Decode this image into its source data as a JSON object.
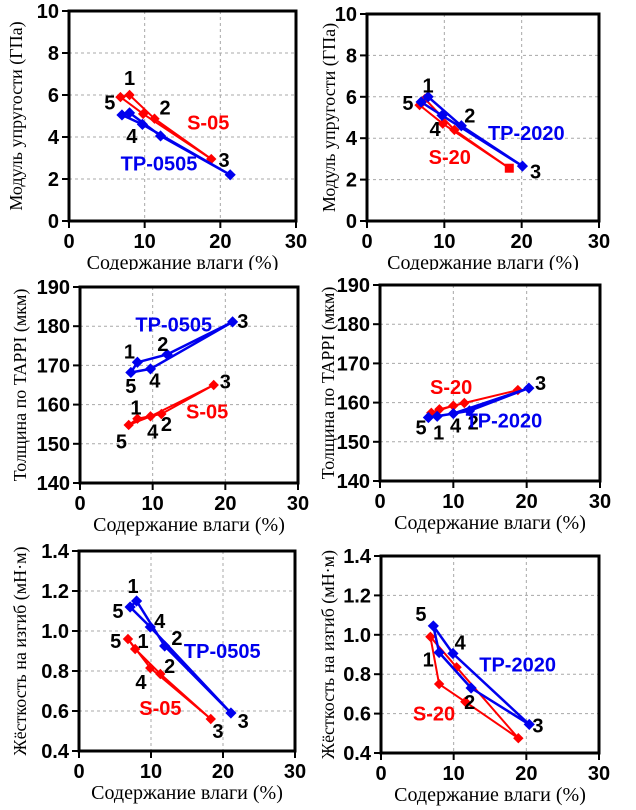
{
  "page": {
    "background": "#ffffff"
  },
  "colors": {
    "red": "#ff0000",
    "blue": "#0000ee",
    "grid": "#a8a8a8",
    "frame": "#000000",
    "text": "#000000"
  },
  "chart_data": [
    {
      "id": "modulus-05",
      "type": "line",
      "xlabel": "Содержание влаги (%)",
      "ylabel": "Модуль упругости (ГПа)",
      "xlim": [
        0,
        30
      ],
      "ylim": [
        0,
        10
      ],
      "xticks": [
        0,
        10,
        20,
        30
      ],
      "xtick_labels": [
        "0",
        "10",
        "20",
        "30"
      ],
      "yticks": [
        0,
        2,
        4,
        6,
        8,
        10
      ],
      "ytick_labels": [
        "0",
        "2",
        "4",
        "6",
        "8",
        "10"
      ],
      "grid": true,
      "series": [
        {
          "name": "S-05",
          "color": "#ff0000",
          "marker": "diamond",
          "closed": true,
          "points": [
            {
              "label": "1",
              "x": 8.0,
              "y": 6.0
            },
            {
              "label": "2",
              "x": 11.3,
              "y": 4.87
            },
            {
              "label": "3",
              "x": 18.8,
              "y": 2.95
            },
            {
              "label": "4",
              "x": 9.8,
              "y": 5.1
            },
            {
              "label": "5",
              "x": 6.8,
              "y": 5.9
            }
          ]
        },
        {
          "name": "TP-0505",
          "color": "#0000ee",
          "marker": "diamond",
          "closed": true,
          "points": [
            {
              "label": "1",
              "x": 8.0,
              "y": 5.15
            },
            {
              "label": "2",
              "x": 12.1,
              "y": 4.05
            },
            {
              "label": "3",
              "x": 21.3,
              "y": 2.2
            },
            {
              "label": "4",
              "x": 9.7,
              "y": 4.6
            },
            {
              "label": "5",
              "x": 7.0,
              "y": 5.05
            }
          ]
        }
      ],
      "annotations": [
        {
          "text": "1",
          "x": 8.0,
          "y": 6.8,
          "color": "#000000"
        },
        {
          "text": "5",
          "x": 5.4,
          "y": 5.65,
          "color": "#000000"
        },
        {
          "text": "2",
          "x": 12.7,
          "y": 5.4,
          "color": "#000000"
        },
        {
          "text": "4",
          "x": 8.3,
          "y": 4.05,
          "color": "#000000"
        },
        {
          "text": "3",
          "x": 20.5,
          "y": 2.9,
          "color": "#000000"
        },
        {
          "text": "S-05",
          "x": 18.4,
          "y": 4.7,
          "color": "#ff0000"
        },
        {
          "text": "TP-0505",
          "x": 11.9,
          "y": 2.75,
          "color": "#0000ee"
        }
      ]
    },
    {
      "id": "modulus-20",
      "type": "line",
      "xlabel": "Содержание влаги (%)",
      "ylabel": "Модуль упругости (ГПа)",
      "xlim": [
        0,
        30
      ],
      "ylim": [
        0,
        10
      ],
      "xticks": [
        0,
        10,
        20,
        30
      ],
      "xtick_labels": [
        "0",
        "10",
        "20",
        "30"
      ],
      "yticks": [
        0,
        2,
        4,
        6,
        8,
        10
      ],
      "ytick_labels": [
        "0",
        "2",
        "4",
        "6",
        "8",
        "10"
      ],
      "grid": true,
      "series": [
        {
          "name": "S-20",
          "color": "#ff0000",
          "marker": "diamond",
          "closed": true,
          "points": [
            {
              "label": "1",
              "x": 7.5,
              "y": 5.9
            },
            {
              "label": "2",
              "x": 11.3,
              "y": 4.4
            },
            {
              "label": "3",
              "x": 18.4,
              "y": 2.55,
              "marker": "square"
            },
            {
              "label": "4",
              "x": 9.8,
              "y": 4.7
            },
            {
              "label": "5",
              "x": 6.8,
              "y": 5.6
            }
          ]
        },
        {
          "name": "TP-2020",
          "color": "#0000ee",
          "marker": "diamond",
          "closed": true,
          "points": [
            {
              "label": "1",
              "x": 7.9,
              "y": 6.0
            },
            {
              "label": "2",
              "x": 12.2,
              "y": 4.6
            },
            {
              "label": "3",
              "x": 20.1,
              "y": 2.65
            },
            {
              "label": "4",
              "x": 9.7,
              "y": 5.1
            },
            {
              "label": "5",
              "x": 7.0,
              "y": 5.75
            }
          ]
        }
      ],
      "annotations": [
        {
          "text": "1",
          "x": 7.9,
          "y": 6.55,
          "color": "#000000"
        },
        {
          "text": "5",
          "x": 5.3,
          "y": 5.7,
          "color": "#000000"
        },
        {
          "text": "2",
          "x": 13.3,
          "y": 5.1,
          "color": "#000000"
        },
        {
          "text": "4",
          "x": 8.8,
          "y": 4.45,
          "color": "#000000"
        },
        {
          "text": "3",
          "x": 21.8,
          "y": 2.4,
          "color": "#000000"
        },
        {
          "text": "S-20",
          "x": 10.7,
          "y": 3.1,
          "color": "#ff0000"
        },
        {
          "text": "TP-2020",
          "x": 20.6,
          "y": 4.25,
          "color": "#0000ee"
        }
      ]
    },
    {
      "id": "thickness-05",
      "type": "line",
      "xlabel": "Содержание влаги (%)",
      "ylabel": "Толщина по TAPPI (мкм)",
      "xlim": [
        0,
        30
      ],
      "ylim": [
        140,
        190
      ],
      "xticks": [
        0,
        10,
        20,
        30
      ],
      "xtick_labels": [
        "0",
        "10",
        "20",
        "30"
      ],
      "yticks": [
        140,
        150,
        160,
        170,
        180,
        190
      ],
      "ytick_labels": [
        "140",
        "150",
        "160",
        "170",
        "180",
        "190"
      ],
      "grid": true,
      "series": [
        {
          "name": "S-05",
          "color": "#ff0000",
          "marker": "diamond",
          "closed": true,
          "points": [
            {
              "label": "1",
              "x": 7.9,
              "y": 156.4
            },
            {
              "label": "2",
              "x": 11.2,
              "y": 157.6
            },
            {
              "label": "3",
              "x": 18.4,
              "y": 165.0
            },
            {
              "label": "4",
              "x": 9.7,
              "y": 157.0
            },
            {
              "label": "5",
              "x": 6.7,
              "y": 154.8
            }
          ]
        },
        {
          "name": "TP-0505",
          "color": "#0000ee",
          "marker": "diamond",
          "closed": true,
          "points": [
            {
              "label": "1",
              "x": 7.9,
              "y": 170.8
            },
            {
              "label": "2",
              "x": 12.0,
              "y": 172.8
            },
            {
              "label": "3",
              "x": 21.0,
              "y": 181.1
            },
            {
              "label": "4",
              "x": 9.7,
              "y": 169.1
            },
            {
              "label": "5",
              "x": 7.0,
              "y": 168.2
            }
          ]
        }
      ],
      "annotations": [
        {
          "text": "1",
          "x": 6.8,
          "y": 173.5,
          "color": "#000000"
        },
        {
          "text": "2",
          "x": 11.4,
          "y": 175.4,
          "color": "#000000"
        },
        {
          "text": "3",
          "x": 22.4,
          "y": 181.3,
          "color": "#000000"
        },
        {
          "text": "5",
          "x": 7.0,
          "y": 164.7,
          "color": "#000000"
        },
        {
          "text": "4",
          "x": 10.3,
          "y": 166.1,
          "color": "#000000"
        },
        {
          "text": "TP-0505",
          "x": 12.9,
          "y": 180.4,
          "color": "#0000ee"
        },
        {
          "text": "1",
          "x": 7.7,
          "y": 159.2,
          "color": "#000000"
        },
        {
          "text": "2",
          "x": 11.9,
          "y": 155.0,
          "color": "#000000"
        },
        {
          "text": "3",
          "x": 20.0,
          "y": 165.9,
          "color": "#000000"
        },
        {
          "text": "4",
          "x": 10.0,
          "y": 153.2,
          "color": "#000000"
        },
        {
          "text": "5",
          "x": 5.7,
          "y": 150.6,
          "color": "#000000"
        },
        {
          "text": "S-05",
          "x": 17.5,
          "y": 158.2,
          "color": "#ff0000"
        }
      ]
    },
    {
      "id": "thickness-20",
      "type": "line",
      "xlabel": "Содержание влаги (%)",
      "ylabel": "Толщина по TAPPI (мкм)",
      "xlim": [
        0,
        30
      ],
      "ylim": [
        140,
        190
      ],
      "xticks": [
        0,
        10,
        20,
        30
      ],
      "xtick_labels": [
        "0",
        "10",
        "20",
        "30"
      ],
      "yticks": [
        140,
        150,
        160,
        170,
        180,
        190
      ],
      "ytick_labels": [
        "140",
        "150",
        "160",
        "170",
        "180",
        "190"
      ],
      "grid": true,
      "series": [
        {
          "name": "S-20",
          "color": "#ff0000",
          "marker": "diamond",
          "closed": true,
          "points": [
            {
              "label": "1",
              "x": 8.1,
              "y": 158.3
            },
            {
              "label": "2",
              "x": 11.5,
              "y": 159.9
            },
            {
              "label": "3",
              "x": 18.8,
              "y": 163.2
            },
            {
              "label": "4",
              "x": 10.0,
              "y": 159.2
            },
            {
              "label": "5",
              "x": 7.0,
              "y": 157.4
            }
          ]
        },
        {
          "name": "TP-2020",
          "color": "#0000ee",
          "marker": "diamond",
          "closed": true,
          "points": [
            {
              "label": "1",
              "x": 7.8,
              "y": 156.5
            },
            {
              "label": "2",
              "x": 12.2,
              "y": 157.9
            },
            {
              "label": "3",
              "x": 20.3,
              "y": 163.7
            },
            {
              "label": "4",
              "x": 10.0,
              "y": 157.2
            },
            {
              "label": "5",
              "x": 6.6,
              "y": 156.2
            }
          ]
        }
      ],
      "annotations": [
        {
          "text": "5",
          "x": 5.6,
          "y": 153.6,
          "color": "#000000"
        },
        {
          "text": "1",
          "x": 8.0,
          "y": 152.4,
          "color": "#000000"
        },
        {
          "text": "4",
          "x": 10.3,
          "y": 154.1,
          "color": "#000000"
        },
        {
          "text": "2",
          "x": 12.7,
          "y": 154.9,
          "color": "#000000"
        },
        {
          "text": "3",
          "x": 21.9,
          "y": 165.0,
          "color": "#000000"
        },
        {
          "text": "S-20",
          "x": 9.7,
          "y": 164.0,
          "color": "#ff0000"
        },
        {
          "text": "TP-2020",
          "x": 16.9,
          "y": 155.4,
          "color": "#0000ee"
        }
      ]
    },
    {
      "id": "stiffness-05",
      "type": "line",
      "xlabel": "Содержание влаги (%)",
      "ylabel": "Жёсткость на изгиб (мН·м)",
      "xlim": [
        0,
        30
      ],
      "ylim": [
        0.4,
        1.4
      ],
      "xticks": [
        0,
        10,
        20,
        30
      ],
      "xtick_labels": [
        "0",
        "10",
        "20",
        "30"
      ],
      "yticks": [
        0.4,
        0.6,
        0.8,
        1.0,
        1.2,
        1.4
      ],
      "ytick_labels": [
        "0.4",
        "0.6",
        "0.8",
        "1.0",
        "1.2",
        "1.4"
      ],
      "grid": true,
      "series": [
        {
          "name": "S-05",
          "color": "#ff0000",
          "marker": "diamond",
          "closed": true,
          "points": [
            {
              "label": "1",
              "x": 7.8,
              "y": 0.91
            },
            {
              "label": "2",
              "x": 11.3,
              "y": 0.785
            },
            {
              "label": "3",
              "x": 18.3,
              "y": 0.56
            },
            {
              "label": "4",
              "x": 9.9,
              "y": 0.815
            },
            {
              "label": "5",
              "x": 6.8,
              "y": 0.96
            }
          ]
        },
        {
          "name": "TP-0505",
          "color": "#0000ee",
          "marker": "diamond",
          "closed": true,
          "points": [
            {
              "label": "1",
              "x": 8.0,
              "y": 1.15
            },
            {
              "label": "2",
              "x": 11.9,
              "y": 0.925
            },
            {
              "label": "3",
              "x": 21.1,
              "y": 0.59
            },
            {
              "label": "4",
              "x": 9.9,
              "y": 1.02
            },
            {
              "label": "5",
              "x": 7.1,
              "y": 1.12
            }
          ]
        }
      ],
      "annotations": [
        {
          "text": "1",
          "x": 7.5,
          "y": 1.225,
          "color": "#000000"
        },
        {
          "text": "5",
          "x": 5.4,
          "y": 1.1,
          "color": "#000000"
        },
        {
          "text": "4",
          "x": 11.2,
          "y": 1.05,
          "color": "#000000"
        },
        {
          "text": "2",
          "x": 13.6,
          "y": 0.965,
          "color": "#000000"
        },
        {
          "text": "3",
          "x": 22.8,
          "y": 0.55,
          "color": "#000000"
        },
        {
          "text": "TP-0505",
          "x": 19.9,
          "y": 0.9,
          "color": "#0000ee"
        },
        {
          "text": "5",
          "x": 5.1,
          "y": 0.95,
          "color": "#000000"
        },
        {
          "text": "1",
          "x": 8.9,
          "y": 0.95,
          "color": "#000000"
        },
        {
          "text": "4",
          "x": 8.6,
          "y": 0.745,
          "color": "#000000"
        },
        {
          "text": "2",
          "x": 12.6,
          "y": 0.825,
          "color": "#000000"
        },
        {
          "text": "3",
          "x": 19.3,
          "y": 0.5,
          "color": "#000000"
        },
        {
          "text": "S-05",
          "x": 11.3,
          "y": 0.615,
          "color": "#ff0000"
        }
      ]
    },
    {
      "id": "stiffness-20",
      "type": "line",
      "xlabel": "Содержание влаги (%)",
      "ylabel": "Жёсткость на изгиб (мН·м)",
      "xlim": [
        0,
        30
      ],
      "ylim": [
        0.4,
        1.4
      ],
      "xticks": [
        0,
        10,
        20,
        30
      ],
      "xtick_labels": [
        "0",
        "10",
        "20",
        "30"
      ],
      "yticks": [
        0.4,
        0.6,
        0.8,
        1.0,
        1.2,
        1.4
      ],
      "ytick_labels": [
        "0.4",
        "0.6",
        "0.8",
        "1.0",
        "1.2",
        "1.4"
      ],
      "grid": true,
      "series": [
        {
          "name": "S-20",
          "color": "#ff0000",
          "marker": "diamond",
          "closed": true,
          "points": [
            {
              "label": "1",
              "x": 8.0,
              "y": 0.75
            },
            {
              "label": "2",
              "x": 11.6,
              "y": 0.66
            },
            {
              "label": "3",
              "x": 18.9,
              "y": 0.475
            },
            {
              "label": "4",
              "x": 10.4,
              "y": 0.835
            },
            {
              "label": "5",
              "x": 6.8,
              "y": 0.99
            }
          ]
        },
        {
          "name": "TP-2020",
          "color": "#0000ee",
          "marker": "diamond",
          "closed": true,
          "points": [
            {
              "label": "1",
              "x": 8.0,
              "y": 0.91
            },
            {
              "label": "2",
              "x": 12.4,
              "y": 0.73
            },
            {
              "label": "3",
              "x": 20.4,
              "y": 0.545
            },
            {
              "label": "4",
              "x": 9.9,
              "y": 0.905
            },
            {
              "label": "5",
              "x": 7.2,
              "y": 1.045
            }
          ]
        }
      ],
      "annotations": [
        {
          "text": "5",
          "x": 5.5,
          "y": 1.105,
          "color": "#000000"
        },
        {
          "text": "4",
          "x": 10.9,
          "y": 0.96,
          "color": "#000000"
        },
        {
          "text": "1",
          "x": 6.5,
          "y": 0.875,
          "color": "#000000"
        },
        {
          "text": "2",
          "x": 12.2,
          "y": 0.66,
          "color": "#000000"
        },
        {
          "text": "3",
          "x": 21.6,
          "y": 0.54,
          "color": "#000000"
        },
        {
          "text": "TP-2020",
          "x": 18.8,
          "y": 0.85,
          "color": "#0000ee"
        },
        {
          "text": "S-20",
          "x": 7.3,
          "y": 0.6,
          "color": "#ff0000"
        }
      ]
    }
  ]
}
